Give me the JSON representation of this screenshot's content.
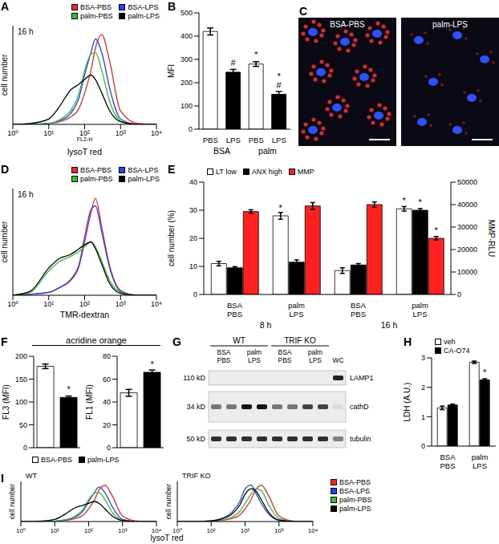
{
  "chart_data": [
    {
      "panel": "A",
      "type": "line",
      "annotations": [
        "16 h"
      ],
      "x_label": "lysoT red",
      "x_sublabel": "FL2-H",
      "y_label": "cell number",
      "log": "x",
      "xlim": [
        1,
        10000
      ],
      "xticks": [
        {
          "value": 1,
          "label": "10⁰"
        },
        {
          "value": 10,
          "label": "10¹"
        },
        {
          "value": 100,
          "label": "10²"
        },
        {
          "value": 1000,
          "label": "10³"
        },
        {
          "value": 10000,
          "label": "10⁴"
        }
      ],
      "ylim": [
        0,
        110
      ],
      "tick_labels": "x",
      "legend": "top-right",
      "x": [
        1,
        3,
        10,
        20,
        40,
        70,
        100,
        150,
        200,
        300,
        500,
        1000,
        3000,
        10000
      ],
      "series": [
        {
          "name": "BSA-PBS",
          "color": "#ff2020",
          "values": [
            0,
            0,
            1,
            3,
            8,
            18,
            35,
            60,
            85,
            100,
            70,
            15,
            1,
            0
          ]
        },
        {
          "name": "BSA-LPS",
          "color": "#2040ff",
          "values": [
            0,
            0,
            1,
            4,
            12,
            30,
            55,
            80,
            95,
            80,
            40,
            6,
            0,
            0
          ]
        },
        {
          "name": "palm-PBS",
          "color": "#30c030",
          "values": [
            0,
            0,
            1,
            5,
            15,
            35,
            60,
            78,
            80,
            60,
            25,
            4,
            0,
            0
          ]
        },
        {
          "name": "palm-LPS",
          "color": "#000000",
          "values": [
            0,
            1,
            6,
            20,
            38,
            45,
            50,
            55,
            50,
            35,
            15,
            3,
            0,
            0
          ]
        }
      ]
    },
    {
      "panel": "B",
      "type": "bar",
      "y_label": "MFI",
      "categories": [
        "PBS",
        "LPS",
        "PBS",
        "LPS"
      ],
      "groups": [
        {
          "name": "BSA",
          "span": [
            0,
            1
          ]
        },
        {
          "name": "palm",
          "span": [
            2,
            3
          ]
        }
      ],
      "values": [
        420,
        245,
        280,
        150
      ],
      "errors": [
        15,
        12,
        10,
        12
      ],
      "colors": [
        "#ffffff",
        "#000000",
        "#ffffff",
        "#000000"
      ],
      "ylim": [
        0,
        500
      ],
      "yticks": [
        0,
        100,
        200,
        300,
        400,
        500
      ],
      "annotations": [
        {
          "index": 1,
          "text": "#"
        },
        {
          "index": 2,
          "text": "*"
        },
        {
          "index": 3,
          "text": "* #"
        }
      ]
    },
    {
      "panel": "C",
      "type": "image",
      "labels": [
        "BSA-PBS",
        "palm-LPS"
      ]
    },
    {
      "panel": "D",
      "type": "line",
      "annotations": [
        "16 h"
      ],
      "x_label": "TMR-dextran",
      "y_label": "cell number",
      "log": "x",
      "xlim": [
        1,
        10000
      ],
      "xticks": [
        {
          "value": 1,
          "label": "10⁰"
        },
        {
          "value": 10,
          "label": "10¹"
        },
        {
          "value": 100,
          "label": "10²"
        },
        {
          "value": 1000,
          "label": "10³"
        },
        {
          "value": 10000,
          "label": "10⁴"
        }
      ],
      "ylim": [
        0,
        110
      ],
      "tick_labels": "x",
      "legend": "top-right",
      "x": [
        1,
        3,
        10,
        20,
        40,
        70,
        100,
        150,
        200,
        300,
        500,
        1000,
        3000,
        10000
      ],
      "series": [
        {
          "name": "BSA-PBS",
          "color": "#ff2020",
          "values": [
            0,
            1,
            3,
            8,
            15,
            30,
            55,
            85,
            100,
            70,
            30,
            5,
            0,
            0
          ]
        },
        {
          "name": "BSA-LPS",
          "color": "#2040ff",
          "values": [
            0,
            1,
            3,
            8,
            16,
            32,
            60,
            88,
            92,
            65,
            28,
            4,
            0,
            0
          ]
        },
        {
          "name": "palm-PBS",
          "color": "#30c030",
          "values": [
            0,
            3,
            25,
            35,
            40,
            45,
            50,
            55,
            50,
            35,
            15,
            3,
            0,
            0
          ]
        },
        {
          "name": "palm-LPS",
          "color": "#000000",
          "values": [
            0,
            4,
            28,
            38,
            42,
            48,
            52,
            55,
            48,
            32,
            12,
            2,
            0,
            0
          ]
        }
      ]
    },
    {
      "panel": "E",
      "type": "bar",
      "categories": [
        "BSA PBS",
        "palm LPS",
        "BSA PBS",
        "palm LPS"
      ],
      "groups": [
        {
          "name": "8 h",
          "span": [
            0,
            1
          ]
        },
        {
          "name": "16 h",
          "span": [
            2,
            3
          ]
        }
      ],
      "y_label": "cell number (%)",
      "y2_label": "MMP-RLU",
      "ylim": [
        0,
        40
      ],
      "yticks": [
        0,
        10,
        20,
        30,
        40
      ],
      "y2lim": [
        0,
        50000
      ],
      "y2ticks": [
        0,
        10000,
        20000,
        30000,
        40000,
        50000
      ],
      "legend": "top-left",
      "series": [
        {
          "name": "LT low",
          "color": "#ffffff",
          "values": [
            11,
            28,
            8.5,
            30.5
          ],
          "errors": [
            0.8,
            1.2,
            1,
            0.8
          ]
        },
        {
          "name": "ANX high",
          "color": "#000000",
          "values": [
            9.5,
            11.5,
            10.5,
            30
          ],
          "errors": [
            0.4,
            0.8,
            0.5,
            0.6
          ]
        },
        {
          "name": "MMP",
          "color": "#ff2020",
          "axis": "y2",
          "values": [
            36900,
            39400,
            40000,
            25000
          ],
          "errors": [
            800,
            1500,
            1200,
            800
          ]
        }
      ],
      "annotations": [
        {
          "series": "LT low",
          "index": 1,
          "text": "*"
        },
        {
          "series": "LT low",
          "index": 3,
          "text": "*"
        },
        {
          "series": "ANX high",
          "index": 3,
          "text": "*"
        },
        {
          "series": "MMP",
          "index": 3,
          "text": "*"
        }
      ]
    },
    {
      "panel": "F",
      "type": "bar",
      "title": "acridine orange",
      "categories": [
        "BSA-PBS",
        "palm-LPS"
      ],
      "colors": [
        "#ffffff",
        "#000000"
      ],
      "legend": "bottom",
      "tick_labels": "y",
      "subplots": [
        {
          "y_label": "FL3 (MFI)",
          "values": [
            178,
            110
          ],
          "errors": [
            5,
            3
          ],
          "ylim": [
            0,
            200
          ],
          "yticks": [
            0,
            50,
            100,
            150,
            200
          ],
          "annotations": [
            {
              "index": 1,
              "text": "*"
            }
          ]
        },
        {
          "y_label": "FL1 (MFI)",
          "values": [
            48,
            66
          ],
          "errors": [
            3,
            2
          ],
          "ylim": [
            0,
            80
          ],
          "yticks": [
            0,
            20,
            40,
            60,
            80
          ],
          "annotations": [
            {
              "index": 1,
              "text": "*"
            }
          ]
        }
      ]
    },
    {
      "panel": "G",
      "type": "blot",
      "groups": [
        {
          "label": "WT",
          "lanes": [
            "BSA PBS",
            "palm LPS"
          ]
        },
        {
          "label": "TRIF KO",
          "lanes": [
            "BSA PBS",
            "palm LPS"
          ]
        }
      ],
      "extra_lane": "WC",
      "rows": [
        {
          "size": "110 kD",
          "label": "LAMP1"
        },
        {
          "size": "34 kD",
          "label": "cathD"
        },
        {
          "size": "50 kD",
          "label": "tubulin"
        }
      ]
    },
    {
      "panel": "H",
      "type": "bar",
      "y_label": "LDH (A.U.)",
      "categories": [
        "BSA PBS",
        "palm LPS"
      ],
      "ylim": [
        0,
        3
      ],
      "yticks": [
        0,
        1,
        2,
        3
      ],
      "legend": "top-left",
      "series": [
        {
          "name": "veh",
          "color": "#ffffff",
          "values": [
            1.3,
            2.85
          ],
          "errors": [
            0.06,
            0.04
          ]
        },
        {
          "name": "CA-O74",
          "color": "#000000",
          "values": [
            1.4,
            2.25
          ],
          "errors": [
            0.03,
            0.04
          ]
        }
      ],
      "annotations": [
        {
          "series": "CA-O74",
          "index": 1,
          "text": "*"
        }
      ]
    },
    {
      "panel": "I",
      "type": "line",
      "x_label": "lysoT red",
      "y_label": "cell number",
      "log": "x",
      "xlim": [
        1,
        10000
      ],
      "xticks": [
        {
          "value": 1,
          "label": "10⁰"
        },
        {
          "value": 10,
          "label": "10¹"
        },
        {
          "value": 100,
          "label": "10²"
        },
        {
          "value": 1000,
          "label": "10³"
        },
        {
          "value": 10000,
          "label": "10⁴"
        }
      ],
      "ylim": [
        0,
        110
      ],
      "tick_labels": "x",
      "legend": "right",
      "x": [
        1,
        3,
        10,
        20,
        40,
        70,
        100,
        150,
        200,
        300,
        500,
        1000,
        3000,
        10000
      ],
      "subplots": [
        {
          "title": "WT",
          "series": [
            {
              "name": "BSA-PBS",
              "color": "#ff2020",
              "values": [
                0,
                0,
                1,
                3,
                8,
                18,
                35,
                60,
                85,
                100,
                70,
                15,
                1,
                0
              ]
            },
            {
              "name": "BSA-LPS",
              "color": "#2040ff",
              "values": [
                0,
                0,
                1,
                4,
                12,
                30,
                55,
                80,
                95,
                80,
                40,
                6,
                0,
                0
              ]
            },
            {
              "name": "palm-PBS",
              "color": "#30c030",
              "values": [
                0,
                0,
                1,
                5,
                15,
                35,
                60,
                78,
                80,
                60,
                25,
                4,
                0,
                0
              ]
            },
            {
              "name": "palm-LPS",
              "color": "#000000",
              "values": [
                0,
                1,
                6,
                20,
                38,
                45,
                50,
                55,
                50,
                35,
                15,
                3,
                0,
                0
              ]
            }
          ]
        },
        {
          "title": "TRIF KO",
          "series": [
            {
              "name": "BSA-PBS",
              "color": "#ff2020",
              "values": [
                0,
                0,
                1,
                3,
                8,
                18,
                35,
                60,
                85,
                100,
                70,
                15,
                1,
                0
              ]
            },
            {
              "name": "BSA-LPS",
              "color": "#2040ff",
              "values": [
                0,
                0,
                2,
                8,
                25,
                55,
                90,
                100,
                80,
                50,
                20,
                3,
                0,
                0
              ]
            },
            {
              "name": "palm-PBS",
              "color": "#30c030",
              "values": [
                0,
                0,
                1,
                4,
                12,
                28,
                50,
                75,
                90,
                85,
                45,
                8,
                0,
                0
              ]
            },
            {
              "name": "palm-LPS",
              "color": "#000000",
              "values": [
                0,
                0,
                2,
                7,
                20,
                45,
                75,
                90,
                85,
                60,
                25,
                4,
                0,
                0
              ]
            }
          ]
        }
      ]
    }
  ]
}
